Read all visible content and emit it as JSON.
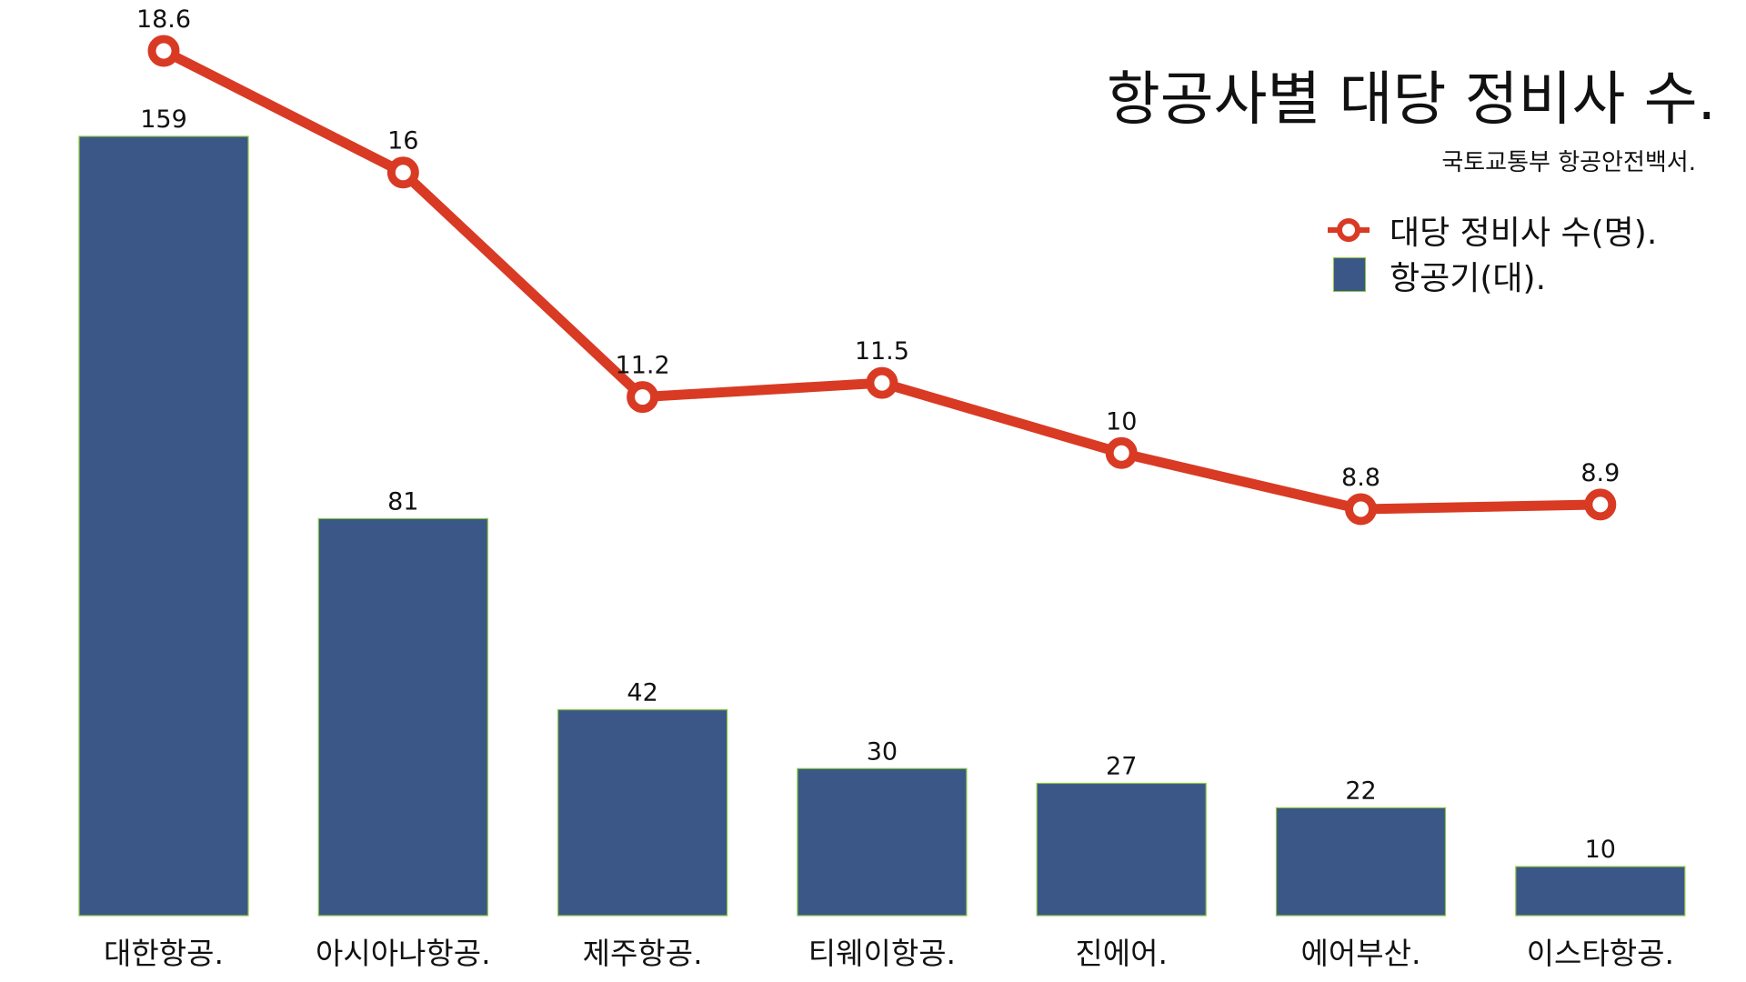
{
  "chart_data": {
    "type": "bar",
    "title": "항공사별 대당 정비사 수.",
    "source": "국토교통부 항공안전백서.",
    "categories": [
      "대한항공.",
      "아시아나항공.",
      "제주항공.",
      "티웨이항공.",
      "진에어.",
      "에어부산.",
      "이스타항공."
    ],
    "series": [
      {
        "name": "항공기(대).",
        "type": "bar",
        "values": [
          159,
          81,
          42,
          30,
          27,
          22,
          10
        ],
        "labels": [
          "159",
          "81",
          "42",
          "30",
          "27",
          "22",
          "10"
        ],
        "color": "#3a5787",
        "edge_color": "#8dc63f"
      },
      {
        "name": "대당 정비사 수(명).",
        "type": "line",
        "values": [
          18.6,
          16,
          11.2,
          11.5,
          10,
          8.8,
          8.9
        ],
        "labels": [
          "18.6",
          "16",
          "11.2",
          "11.5",
          "10",
          "8.8",
          "8.9"
        ],
        "color": "#d93a24",
        "marker": "hollow-circle"
      }
    ],
    "bar_axis_range": [
      0,
      159
    ],
    "line_axis_range": [
      0,
      18.6
    ],
    "grid": false,
    "axes_visible": false,
    "legend_position": "top-right"
  }
}
